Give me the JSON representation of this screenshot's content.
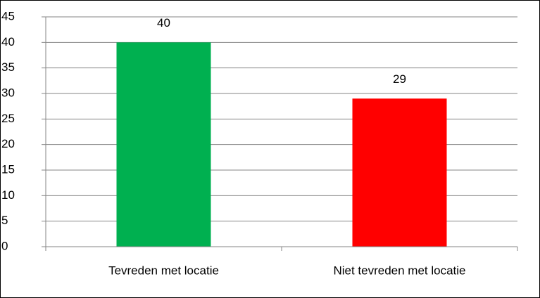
{
  "chart_data": {
    "type": "bar",
    "categories": [
      "Tevreden met locatie",
      "Niet tevreden met locatie"
    ],
    "values": [
      40,
      29
    ],
    "colors": [
      "#00b050",
      "#ff0000"
    ],
    "ylim": [
      0,
      45
    ],
    "yticks": [
      0,
      5,
      10,
      15,
      20,
      25,
      30,
      35,
      40,
      45
    ],
    "grid": true
  }
}
